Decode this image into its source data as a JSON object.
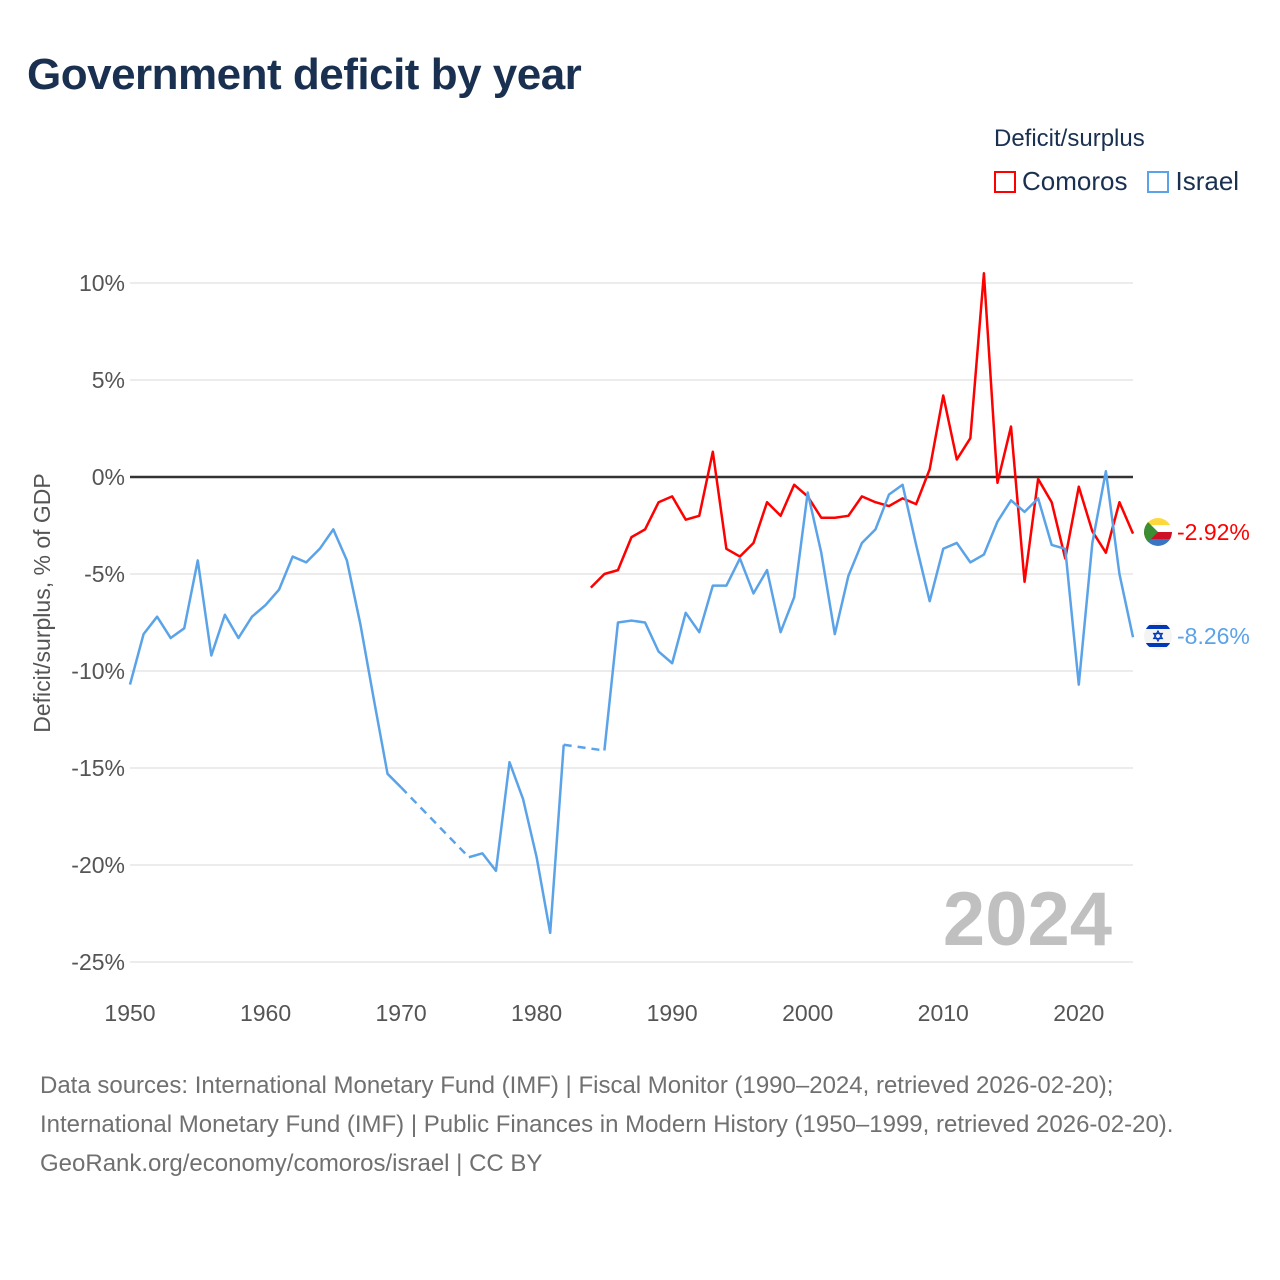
{
  "title": "Government deficit by year",
  "legend": {
    "title": "Deficit/surplus",
    "items": [
      {
        "name": "Comoros",
        "color": "#ff0000"
      },
      {
        "name": "Israel",
        "color": "#5ba3e8"
      }
    ]
  },
  "footer": {
    "sources": "Data sources: International Monetary Fund (IMF) | Fiscal Monitor (1990–2024, retrieved 2026-02-20); International Monetary Fund (IMF) | Public Finances in Modern History (1950–1999, retrieved 2026-02-20).",
    "credit": "GeoRank.org/economy/comoros/israel | CC BY"
  },
  "chart_data": {
    "type": "line",
    "title": "Government deficit by year",
    "ylabel": "Deficit/surplus, % of GDP",
    "xlabel": "",
    "xlim": [
      1950,
      2024
    ],
    "ylim": [
      -25,
      10
    ],
    "x_ticks": [
      1950,
      1960,
      1970,
      1980,
      1990,
      2000,
      2010,
      2020
    ],
    "y_ticks": [
      {
        "v": 10,
        "label": "10%"
      },
      {
        "v": 5,
        "label": "5%"
      },
      {
        "v": 0,
        "label": "0%"
      },
      {
        "v": -5,
        "label": "-5%"
      },
      {
        "v": -10,
        "label": "-10%"
      },
      {
        "v": -15,
        "label": "-15%"
      },
      {
        "v": -20,
        "label": "-20%"
      },
      {
        "v": -25,
        "label": "-25%"
      }
    ],
    "grid": true,
    "year_watermark": "2024",
    "series": [
      {
        "name": "Israel",
        "color": "#5ba3e8",
        "end_label": "-8.26%",
        "start_year": 1950,
        "values": [
          -10.7,
          -8.1,
          -7.2,
          -8.3,
          -7.8,
          -4.3,
          -9.2,
          -7.1,
          -8.3,
          -7.2,
          -6.6,
          -5.8,
          -4.1,
          -4.4,
          -3.7,
          -2.7,
          -4.3,
          -7.6,
          -11.5,
          -15.3,
          -16.0,
          null,
          null,
          null,
          null,
          -19.6,
          -19.4,
          -20.3,
          -14.7,
          -16.6,
          -19.6,
          -23.5,
          -13.8,
          null,
          null,
          -14.1,
          -7.5,
          -7.4,
          -7.5,
          -9.0,
          -9.6,
          -7.0,
          -8.0,
          -5.6,
          -5.6,
          -4.2,
          -6.0,
          -4.8,
          -8.0,
          -6.2,
          -0.8,
          -3.9,
          -8.1,
          -5.1,
          -3.4,
          -2.7,
          -0.9,
          -0.4,
          -3.5,
          -6.4,
          -3.7,
          -3.4,
          -4.4,
          -4.0,
          -2.3,
          -1.2,
          -1.8,
          -1.1,
          -3.5,
          -3.7,
          -10.7,
          -3.4,
          0.3,
          -5.0,
          -8.26
        ]
      },
      {
        "name": "Comoros",
        "color": "#ff0000",
        "end_label": "-2.92%",
        "start_year": 1984,
        "values": [
          -5.7,
          -5.0,
          -4.8,
          -3.1,
          -2.7,
          -1.3,
          -1.0,
          -2.2,
          -2.0,
          1.3,
          -3.7,
          -4.1,
          -3.4,
          -1.3,
          -2.0,
          -0.4,
          -1.0,
          -2.1,
          -2.1,
          -2.0,
          -1.0,
          -1.3,
          -1.5,
          -1.1,
          -1.4,
          0.4,
          4.2,
          0.9,
          2.0,
          10.5,
          -0.3,
          2.6,
          -5.4,
          -0.1,
          -1.3,
          -4.2,
          -0.5,
          -2.8,
          -3.9,
          -1.3,
          -2.92
        ]
      }
    ]
  }
}
